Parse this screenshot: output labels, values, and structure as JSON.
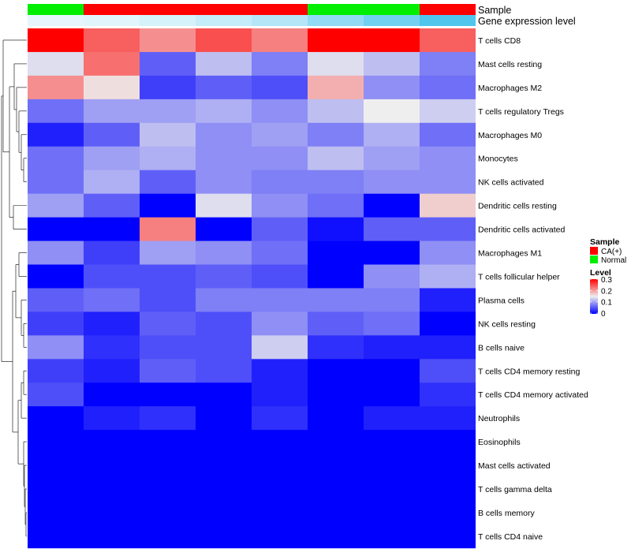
{
  "chart_data": {
    "type": "heatmap",
    "annotation_labels": [
      "Sample",
      "Gene expression level"
    ],
    "sample_groups": [
      "Normal",
      "CA(+)",
      "CA(+)",
      "CA(+)",
      "CA(+)",
      "Normal",
      "Normal",
      "CA(+)"
    ],
    "gene_expression_level": [
      0.05,
      0.08,
      0.15,
      0.25,
      0.35,
      0.55,
      0.75,
      0.95
    ],
    "gene_expression_palette": [
      "#eef9fd",
      "#48c3ec"
    ],
    "rows": [
      "T cells CD8",
      "Mast cells resting",
      "Macrophages M2",
      "T cells regulatory  Tregs",
      "Macrophages M0",
      "Monocytes",
      "NK cells activated",
      "Dendritic cells resting",
      "Dendritic cells activated",
      "Macrophages M1",
      "T cells follicular helper",
      "Plasma cells",
      "NK cells resting",
      "B cells naive",
      "T cells CD4 memory resting",
      "T cells CD4 memory activated",
      "Neutrophils",
      "Eosinophils",
      "Mast cells activated",
      "T cells gamma delta",
      "B cells memory",
      "T cells CD4 naive"
    ],
    "values": [
      [
        0.3,
        0.24,
        0.21,
        0.25,
        0.22,
        0.3,
        0.3,
        0.24
      ],
      [
        0.14,
        0.23,
        0.06,
        0.12,
        0.08,
        0.14,
        0.12,
        0.08
      ],
      [
        0.21,
        0.16,
        0.04,
        0.06,
        0.05,
        0.19,
        0.09,
        0.07
      ],
      [
        0.07,
        0.1,
        0.1,
        0.11,
        0.09,
        0.12,
        0.15,
        0.13
      ],
      [
        0.02,
        0.06,
        0.12,
        0.09,
        0.1,
        0.08,
        0.11,
        0.07
      ],
      [
        0.07,
        0.1,
        0.11,
        0.09,
        0.09,
        0.12,
        0.1,
        0.09
      ],
      [
        0.07,
        0.11,
        0.06,
        0.09,
        0.08,
        0.08,
        0.09,
        0.09
      ],
      [
        0.1,
        0.06,
        0.0,
        0.14,
        0.09,
        0.07,
        0.0,
        0.17
      ],
      [
        0.0,
        0.0,
        0.22,
        0.0,
        0.06,
        0.01,
        0.06,
        0.06
      ],
      [
        0.09,
        0.04,
        0.1,
        0.09,
        0.07,
        0.0,
        0.0,
        0.09
      ],
      [
        0.0,
        0.05,
        0.05,
        0.06,
        0.05,
        0.0,
        0.09,
        0.11
      ],
      [
        0.06,
        0.07,
        0.05,
        0.08,
        0.08,
        0.08,
        0.08,
        0.02
      ],
      [
        0.04,
        0.02,
        0.06,
        0.05,
        0.09,
        0.06,
        0.07,
        0.0
      ],
      [
        0.09,
        0.03,
        0.05,
        0.05,
        0.13,
        0.03,
        0.02,
        0.02
      ],
      [
        0.04,
        0.02,
        0.06,
        0.05,
        0.02,
        0.0,
        0.0,
        0.05
      ],
      [
        0.05,
        0.0,
        0.0,
        0.0,
        0.02,
        0.0,
        0.0,
        0.03
      ],
      [
        0.0,
        0.02,
        0.03,
        0.0,
        0.03,
        0.0,
        0.02,
        0.02
      ],
      [
        0.0,
        0.0,
        0.0,
        0.0,
        0.0,
        0.0,
        0.0,
        0.0
      ],
      [
        0.0,
        0.0,
        0.0,
        0.0,
        0.0,
        0.0,
        0.0,
        0.0
      ],
      [
        0.0,
        0.0,
        0.0,
        0.0,
        0.0,
        0.0,
        0.0,
        0.0
      ],
      [
        0.0,
        0.0,
        0.0,
        0.0,
        0.0,
        0.0,
        0.0,
        0.0
      ],
      [
        0.0,
        0.0,
        0.0,
        0.0,
        0.0,
        0.0,
        0.0,
        0.0
      ]
    ],
    "color_scale": {
      "min": 0,
      "max": 0.3,
      "stops": [
        {
          "value": 0.0,
          "color": "#0000ff"
        },
        {
          "value": 0.15,
          "color": "#eeeeee"
        },
        {
          "value": 0.3,
          "color": "#ff0000"
        }
      ]
    },
    "sample_legend": {
      "title": "Sample",
      "entries": [
        {
          "label": "CA(+)",
          "color": "#ff0000"
        },
        {
          "label": "Normal",
          "color": "#00ee00"
        }
      ]
    },
    "level_legend": {
      "title": "Level",
      "ticks": [
        "0.3",
        "0.2",
        "0.1",
        "0"
      ]
    },
    "legend_placement": "right",
    "grid": false
  }
}
